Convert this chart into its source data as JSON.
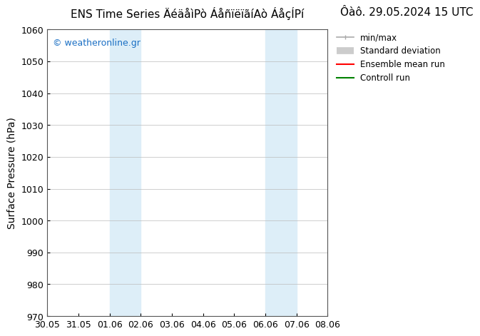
{
  "title_left": "ENS Time Series ÄéäåìPò ÁåñïëïãíAò ÁåçÍPí",
  "title_right": "Ôàô. 29.05.2024 15 UTC",
  "ylabel": "Surface Pressure (hPa)",
  "ylim": [
    970,
    1060
  ],
  "yticks": [
    970,
    980,
    990,
    1000,
    1010,
    1020,
    1030,
    1040,
    1050,
    1060
  ],
  "xtick_labels": [
    "30.05",
    "31.05",
    "01.06",
    "02.06",
    "03.06",
    "04.06",
    "05.06",
    "06.06",
    "07.06",
    "08.06"
  ],
  "xtick_positions": [
    0,
    1,
    2,
    3,
    4,
    5,
    6,
    7,
    8,
    9
  ],
  "xlim": [
    0,
    9
  ],
  "shaded_bands": [
    {
      "x_start": 2,
      "x_end": 3
    },
    {
      "x_start": 7,
      "x_end": 8
    }
  ],
  "shade_color": "#ddeef8",
  "watermark_text": "© weatheronline.gr",
  "watermark_color": "#1a6fc4",
  "legend_entries": [
    {
      "label": "min/max",
      "color": "#aaaaaa",
      "lw": 1.2
    },
    {
      "label": "Standard deviation",
      "color": "#cccccc",
      "lw": 7
    },
    {
      "label": "Ensemble mean run",
      "color": "red",
      "lw": 1.5
    },
    {
      "label": "Controll run",
      "color": "green",
      "lw": 1.5
    }
  ],
  "bg_color": "#ffffff",
  "grid_color": "#bbbbbb",
  "title_fontsize": 11,
  "axis_label_fontsize": 10,
  "tick_fontsize": 9,
  "legend_fontsize": 8.5
}
